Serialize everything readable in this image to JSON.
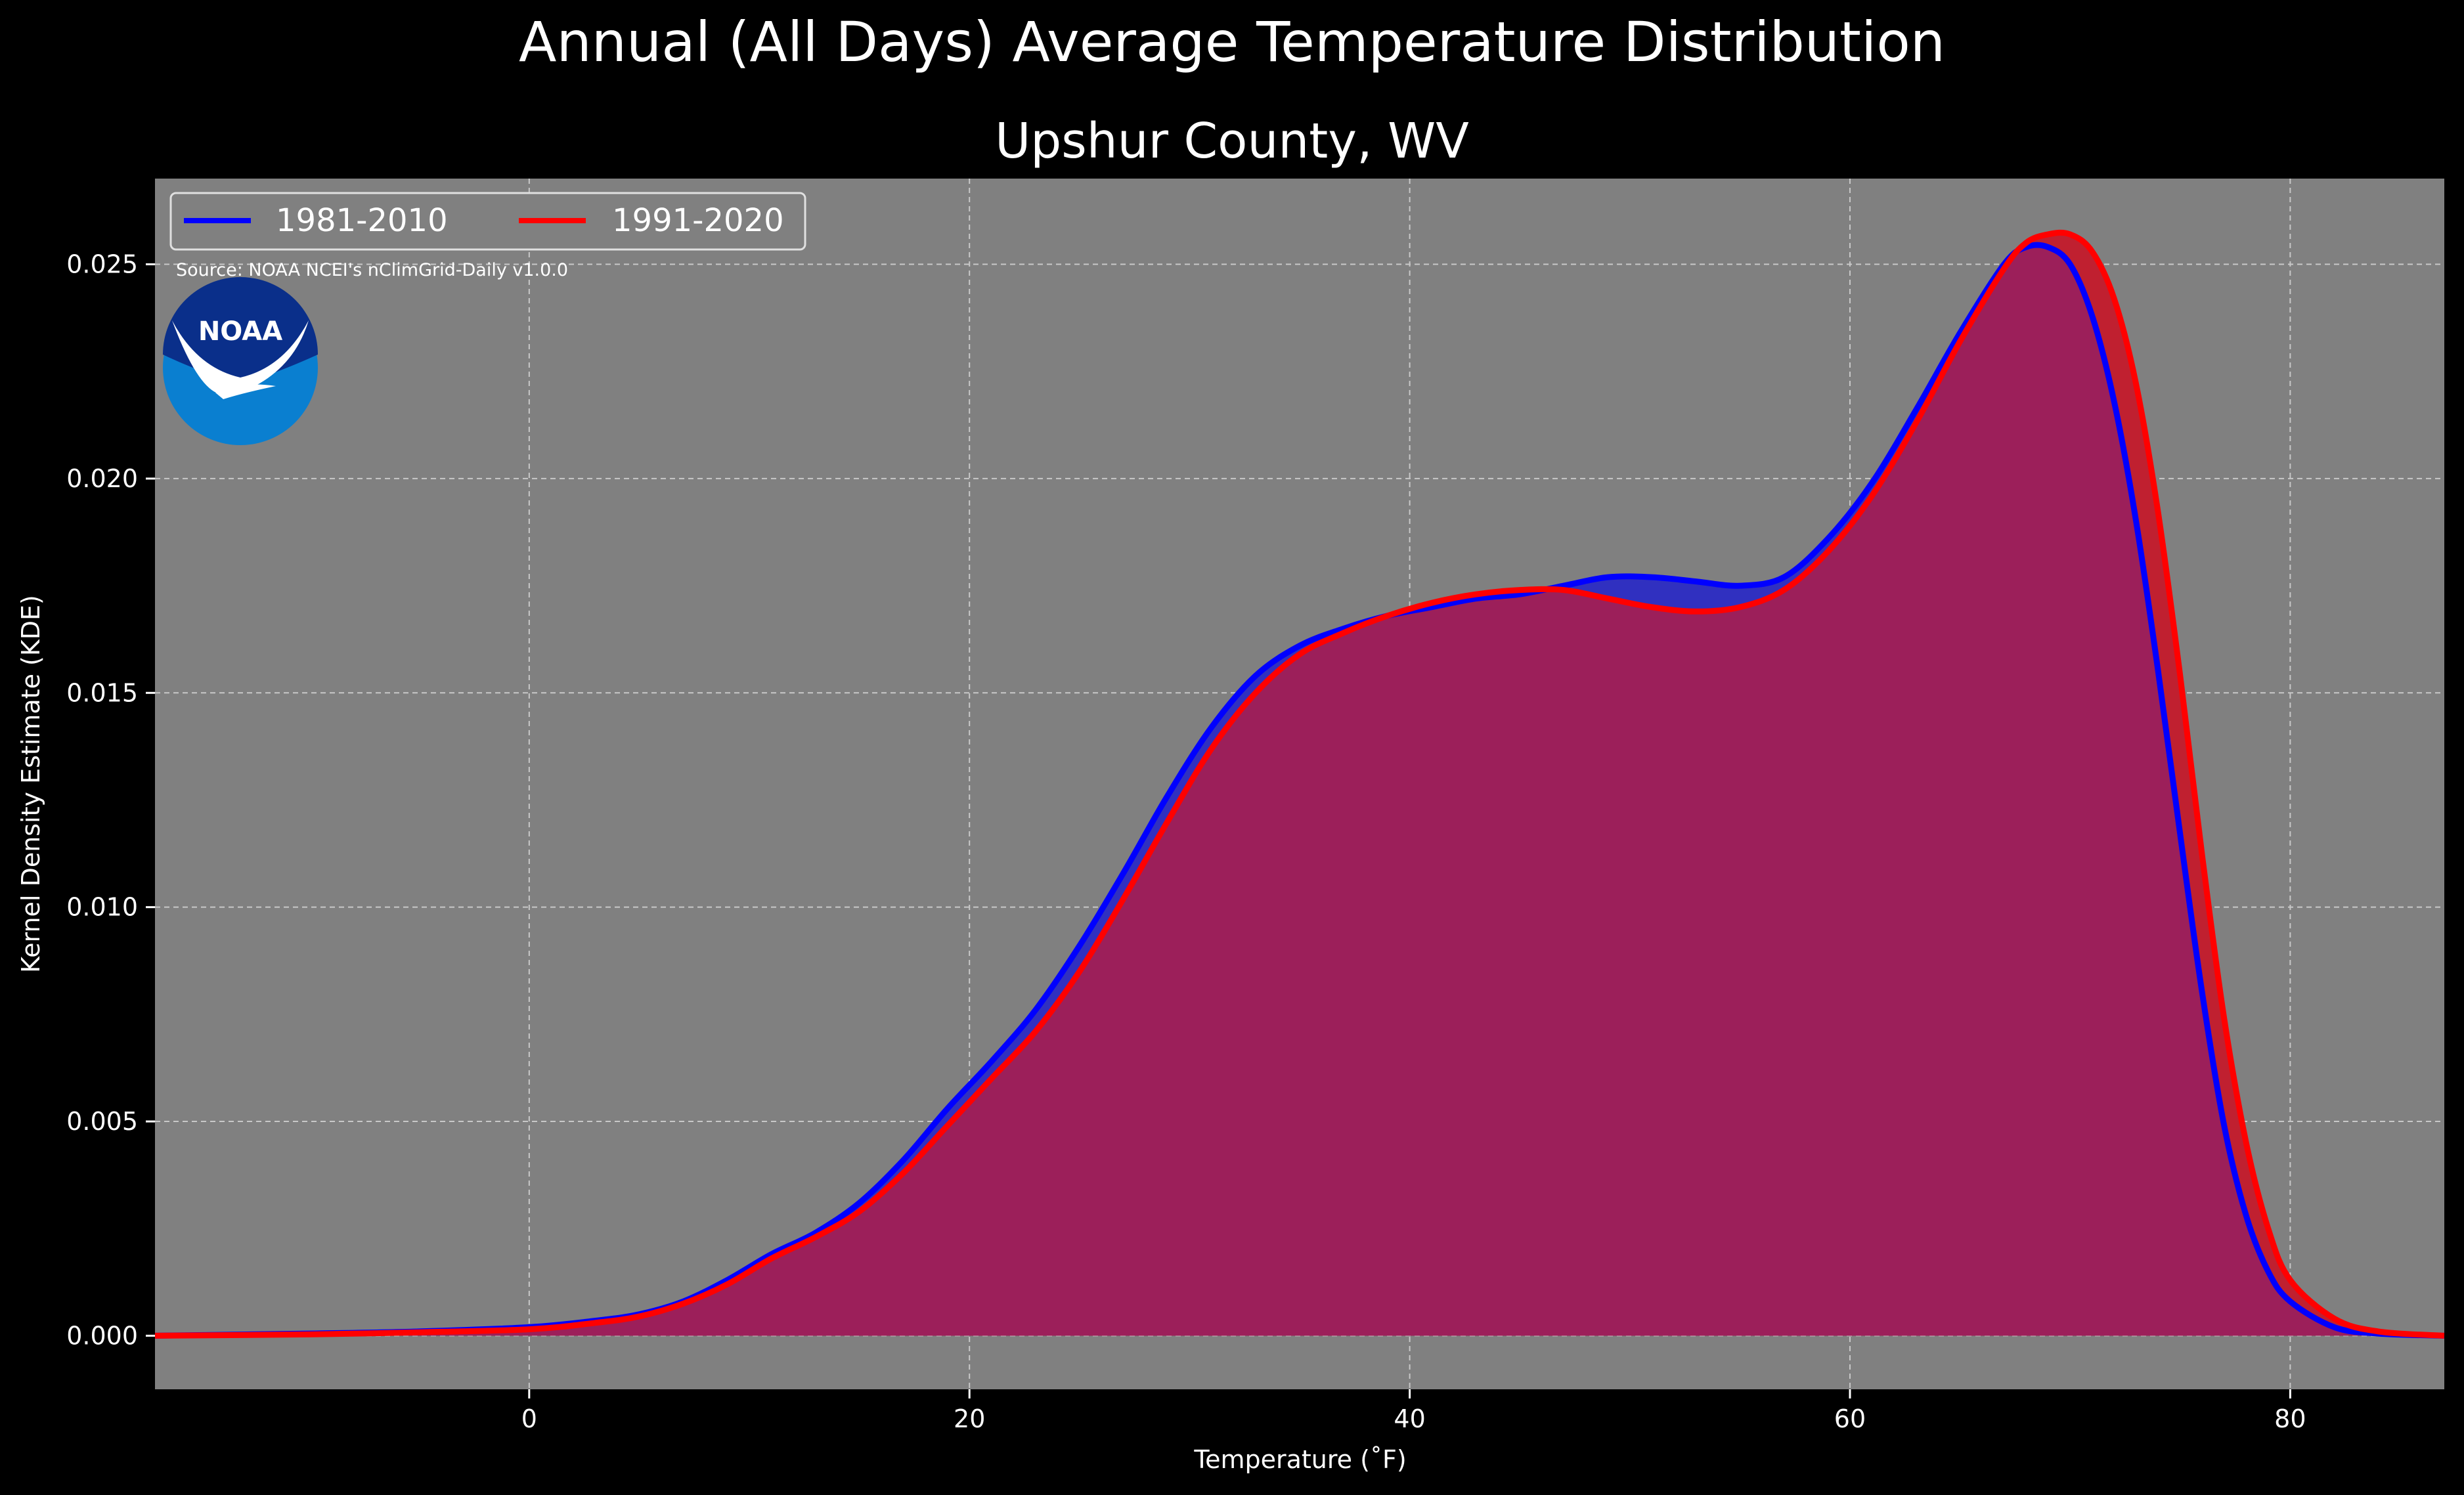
{
  "suptitle": "Annual (All Days) Average Temperature Distribution",
  "chart_data": {
    "type": "area",
    "title": "Upshur County, WV",
    "xlabel": "Temperature (˚F)",
    "ylabel": "Kernel Density Estimate (KDE)",
    "xlim": [
      -17,
      87
    ],
    "ylim": [
      -0.00125,
      0.027
    ],
    "x_ticks": [
      0,
      20,
      40,
      60,
      80
    ],
    "y_ticks": [
      0.0,
      0.005,
      0.01,
      0.015,
      0.02,
      0.025
    ],
    "x_tick_labels": [
      "0",
      "20",
      "40",
      "60",
      "80"
    ],
    "y_tick_labels": [
      "0.000",
      "0.005",
      "0.010",
      "0.015",
      "0.020",
      "0.025"
    ],
    "grid": true,
    "legend_position": "top-left",
    "source_note": "Source: NOAA NCEI's nClimGrid-Daily v1.0.0",
    "logo_text": "NOAA",
    "colors": {
      "background": "#000000",
      "plot_bg": "#808080",
      "series_1": "#0000ff",
      "series_2": "#ff0000",
      "fill_1": "#3030c0",
      "fill_2": "#c02030",
      "overlap": "#9c1f5a"
    },
    "x": [
      -17,
      -10,
      -5,
      0,
      3,
      5,
      7,
      9,
      11,
      13,
      15,
      17,
      19,
      21,
      23,
      25,
      27,
      29,
      31,
      33,
      35,
      37,
      39,
      41,
      43,
      45,
      47,
      49,
      51,
      53,
      55,
      57,
      59,
      61,
      63,
      65,
      67,
      68,
      69,
      70,
      71,
      72,
      73,
      74,
      75,
      76,
      77,
      78,
      79,
      80,
      82,
      84,
      87
    ],
    "series": [
      {
        "name": "1981-2010",
        "values": [
          0.0,
          5e-05,
          0.0001,
          0.0002,
          0.00035,
          0.0005,
          0.0008,
          0.0013,
          0.0019,
          0.0024,
          0.0031,
          0.0041,
          0.0053,
          0.0064,
          0.0076,
          0.0091,
          0.0108,
          0.0126,
          0.0142,
          0.0154,
          0.0161,
          0.0165,
          0.0168,
          0.017,
          0.0172,
          0.0173,
          0.0175,
          0.0177,
          0.0177,
          0.0176,
          0.0175,
          0.0177,
          0.0186,
          0.0199,
          0.0216,
          0.0234,
          0.025,
          0.0254,
          0.0254,
          0.025,
          0.0238,
          0.0218,
          0.019,
          0.0155,
          0.0117,
          0.008,
          0.0049,
          0.0028,
          0.0015,
          0.0008,
          0.0002,
          5e-05,
          0.0
        ]
      },
      {
        "name": "1991-2020",
        "values": [
          0.0,
          3e-05,
          8e-05,
          0.00015,
          0.0003,
          0.00045,
          0.00075,
          0.0012,
          0.0018,
          0.0023,
          0.0029,
          0.0038,
          0.0049,
          0.006,
          0.0071,
          0.0085,
          0.0102,
          0.012,
          0.0137,
          0.015,
          0.0159,
          0.0164,
          0.0168,
          0.0171,
          0.0173,
          0.0174,
          0.0174,
          0.0172,
          0.017,
          0.0169,
          0.017,
          0.0174,
          0.0183,
          0.0196,
          0.0213,
          0.0232,
          0.0249,
          0.0255,
          0.0257,
          0.0257,
          0.0253,
          0.0242,
          0.0222,
          0.0192,
          0.0154,
          0.0112,
          0.0074,
          0.0045,
          0.0025,
          0.0013,
          0.0004,
          0.0001,
          0.0
        ]
      }
    ]
  }
}
